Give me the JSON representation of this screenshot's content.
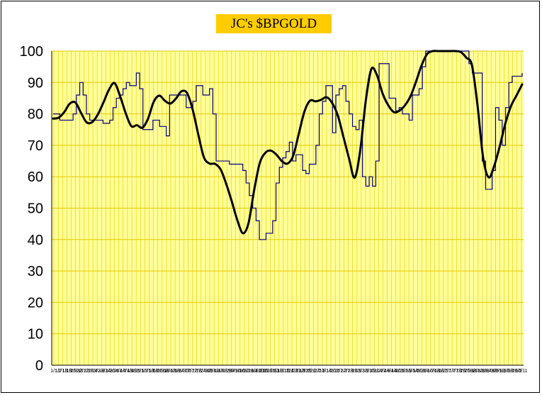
{
  "chart_data": {
    "type": "line",
    "title": "JC's $BPGOLD",
    "ylim": [
      0,
      100
    ],
    "yticks": [
      "0",
      "10",
      "20",
      "30",
      "40",
      "50",
      "60",
      "70",
      "80",
      "90",
      "100"
    ],
    "xticks": [
      "1/1",
      "1/7",
      "1/13",
      "1/19",
      "1/25",
      "1/31",
      "2/6",
      "2/12",
      "2/18",
      "2/24",
      "3/2",
      "3/8",
      "3/14",
      "3/20",
      "3/26",
      "4/1",
      "4/7",
      "4/13",
      "4/19",
      "4/25",
      "5/1",
      "5/7",
      "5/13",
      "5/19",
      "5/25",
      "5/31",
      "6/6",
      "6/12",
      "6/18",
      "6/24",
      "6/30",
      "7/6",
      "7/12",
      "7/18",
      "7/24",
      "7/30",
      "8/5",
      "8/11",
      "8/17",
      "8/23",
      "8/29",
      "9/4",
      "9/10",
      "9/16",
      "9/22",
      "9/28",
      "10/4",
      "10/10",
      "10/16",
      "10/22",
      "10/28",
      "11/3",
      "11/9",
      "11/15",
      "11/21",
      "11/27",
      "12/3",
      "12/9",
      "12/15",
      "12/21",
      "12/27",
      "1/2",
      "1/8",
      "1/14",
      "1/20",
      "1/26",
      "2/1",
      "2/7",
      "2/13",
      "2/19",
      "2/25",
      "3/3",
      "3/9",
      "3/15",
      "3/21",
      "3/27",
      "4/2",
      "4/8",
      "4/14",
      "4/20",
      "4/26",
      "5/2",
      "5/8",
      "5/14",
      "5/20",
      "5/26",
      "6/1",
      "6/7",
      "6/13",
      "6/19",
      "6/25",
      "7/1",
      "7/7",
      "7/13",
      "7/19",
      "7/25",
      "7/31",
      "8/6",
      "8/12",
      "8/18",
      "8/24",
      "8/30",
      "9/5",
      "9/11",
      "9/17",
      "9/23",
      "9/29",
      "10/5",
      "10/11"
    ],
    "grid": true,
    "plot_background": "#ffff99",
    "gridline_color": "#e6c800",
    "series": [
      {
        "color": "#000080",
        "style": "step",
        "values": [
          80,
          80,
          78,
          78,
          78,
          78,
          80,
          86,
          90,
          86,
          80,
          78,
          78,
          78,
          78,
          77,
          77,
          78,
          82,
          85,
          86,
          88,
          90,
          89,
          89,
          93,
          88,
          75,
          75,
          75,
          78,
          78,
          76,
          76,
          73,
          86,
          86,
          86,
          86,
          86,
          82,
          82,
          84,
          89,
          89,
          86,
          86,
          88,
          80,
          65,
          65,
          65,
          65,
          64,
          64,
          64,
          64,
          62,
          58,
          54,
          50,
          46,
          40,
          40,
          42,
          42,
          46,
          58,
          63,
          66,
          68,
          71,
          65,
          67,
          67,
          62,
          61,
          64,
          64,
          70,
          80,
          84,
          89,
          89,
          74,
          86,
          88,
          89,
          84,
          80,
          76,
          75,
          78,
          60,
          57,
          60,
          57,
          65,
          96,
          96,
          96,
          85,
          85,
          81,
          82,
          80,
          80,
          78,
          86,
          86,
          88,
          95,
          100,
          100,
          100,
          100,
          100,
          100,
          100,
          100,
          100,
          100,
          100,
          100,
          100,
          96,
          93,
          93,
          93,
          65,
          56,
          56,
          62,
          82,
          78,
          70,
          82,
          90,
          92,
          92,
          92,
          93
        ]
      },
      {
        "color": "#000000",
        "style": "smooth",
        "values": [
          78.5,
          78.8,
          80.6,
          83.3,
          83.6,
          80.3,
          77.3,
          77.4,
          79.8,
          83.6,
          87.7,
          89.8,
          85.6,
          80.2,
          76.1,
          76.4,
          75.6,
          78.5,
          83.8,
          85.8,
          84.2,
          83.3,
          84.9,
          87.2,
          86.6,
          81.3,
          73.4,
          66.2,
          64.2,
          64.1,
          62.3,
          57.7,
          52.1,
          46.1,
          42.0,
          45.3,
          55.7,
          64.3,
          67.6,
          68.3,
          67.0,
          64.9,
          64.2,
          66.7,
          73.7,
          80.7,
          84.2,
          84.0,
          84.5,
          85.3,
          83.4,
          79.4,
          72.6,
          65.8,
          59.7,
          68.4,
          84.3,
          94.3,
          92.3,
          86.5,
          82.8,
          80.6,
          81.0,
          82.7,
          85.6,
          90.3,
          95.5,
          99.1,
          100.0,
          100.0,
          100.0,
          100.0,
          100.0,
          99.7,
          97.9,
          95.5,
          82.8,
          66.2,
          59.8,
          63.5,
          69.8,
          77.0,
          82.5,
          85.9,
          89.4
        ]
      }
    ]
  }
}
